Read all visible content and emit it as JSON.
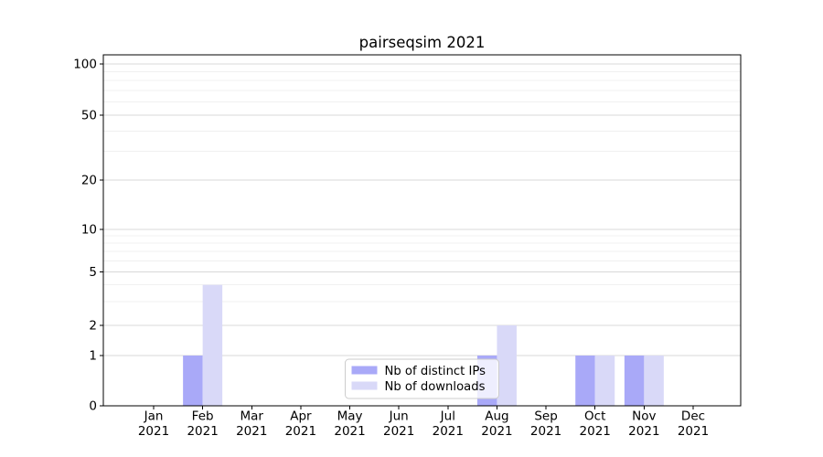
{
  "title": "pairseqsim 2021",
  "chart_data": {
    "type": "bar",
    "title": "pairseqsim 2021",
    "categories": [
      "Jan",
      "Feb",
      "Mar",
      "Apr",
      "May",
      "Jun",
      "Jul",
      "Aug",
      "Sep",
      "Oct",
      "Nov",
      "Dec"
    ],
    "category_year": "2021",
    "series": [
      {
        "name": "Nb of distinct IPs",
        "color": "#a9a9f8",
        "values": [
          0,
          1,
          0,
          0,
          0,
          0,
          0,
          1,
          0,
          1,
          1,
          0
        ]
      },
      {
        "name": "Nb of downloads",
        "color": "#d9d9f8",
        "values": [
          0,
          4,
          0,
          0,
          0,
          0,
          0,
          2,
          0,
          1,
          1,
          0
        ]
      }
    ],
    "yscale": "log-with-zero",
    "y_ticks": [
      100,
      50,
      20,
      10,
      5,
      2,
      1,
      0
    ],
    "y_minor_ticks": [
      3,
      4,
      6,
      7,
      8,
      9,
      30,
      40,
      60,
      70,
      80,
      90
    ],
    "ylim": [
      0,
      113
    ],
    "grid": true,
    "legend": {
      "position": "lower-center",
      "entries": [
        "Nb of distinct IPs",
        "Nb of downloads"
      ]
    },
    "colors": {
      "major_grid": "#d8d8d8",
      "minor_grid": "#f0f0f0",
      "axis": "#000000",
      "legend_border": "#cccccc"
    }
  }
}
